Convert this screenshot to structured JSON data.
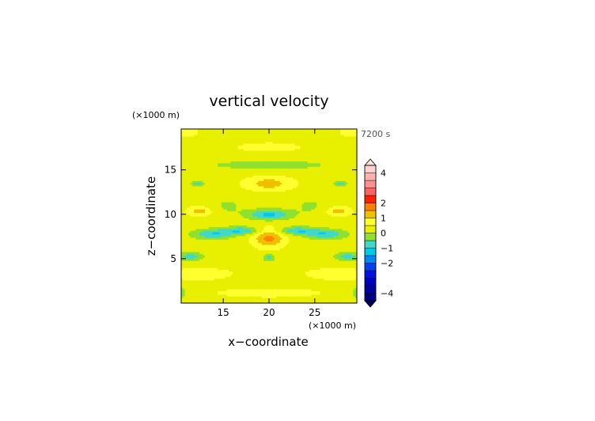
{
  "chart_data": {
    "type": "heatmap",
    "title": "vertical velocity",
    "xlabel": "x−coordinate",
    "ylabel": "z−coordinate",
    "x_unit_label": "(×1000 m)",
    "y_unit_label": "(×1000 m)",
    "time_label": "7200 s",
    "xlim": [
      10.4,
      29.6
    ],
    "ylim": [
      0,
      19.6
    ],
    "x_ticks": [
      15,
      20,
      25
    ],
    "y_ticks": [
      5,
      10,
      15
    ],
    "colorbar": {
      "levels": [
        -4.5,
        -4,
        -3.5,
        -3,
        -2.5,
        -2,
        -1.5,
        -1,
        -0.5,
        0,
        0.5,
        1,
        1.5,
        2,
        2.5,
        3,
        3.5,
        4,
        4.5
      ],
      "colors": [
        "#000060",
        "#00007e",
        "#0000a0",
        "#0000c4",
        "#0010e0",
        "#0040f0",
        "#0088f8",
        "#00c8e8",
        "#40d8c8",
        "#90e030",
        "#e8f000",
        "#ffff30",
        "#f0c000",
        "#ff8000",
        "#ff2000",
        "#ff6060",
        "#ff9090",
        "#ffb0b0",
        "#ffd0d0",
        "#ffe0e0"
      ],
      "tick_values": [
        4,
        2,
        1,
        0,
        -1,
        -2,
        -4
      ],
      "tick_labels": [
        "4",
        "2",
        "1",
        "0",
        "−1",
        "−2",
        "−4"
      ]
    }
  }
}
